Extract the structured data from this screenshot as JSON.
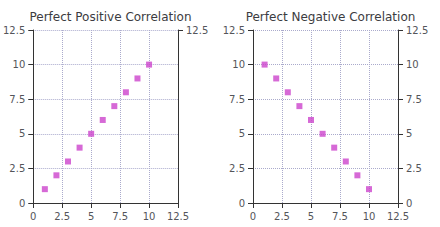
{
  "chart_data": [
    {
      "type": "scatter",
      "title": "Perfect Positive Correlation",
      "x": [
        1,
        2,
        3,
        4,
        5,
        6,
        7,
        8,
        9,
        10
      ],
      "values": [
        1,
        2,
        3,
        4,
        5,
        6,
        7,
        8,
        9,
        10
      ],
      "color": "#cc44cc",
      "marker": "square",
      "xlim": [
        0,
        12.5
      ],
      "ylim": [
        0,
        12.5
      ],
      "xticks": [
        0,
        2.5,
        5,
        7.5,
        10,
        12.5
      ],
      "yticks": [
        0,
        2.5,
        5,
        7.5,
        10,
        12.5
      ],
      "y2lim": [
        0,
        12.5
      ],
      "y2ticks": [
        12.5
      ],
      "grid": true
    },
    {
      "type": "scatter",
      "title": "Perfect Negative Correlation",
      "x": [
        1,
        2,
        3,
        4,
        5,
        6,
        7,
        8,
        9,
        10
      ],
      "values": [
        10,
        9,
        8,
        7,
        6,
        5,
        4,
        3,
        2,
        1
      ],
      "color": "#cc44cc",
      "marker": "square",
      "xlim": [
        0,
        12.5
      ],
      "ylim": [
        0,
        12.5
      ],
      "xticks": [
        0,
        2.5,
        5,
        7.5,
        10,
        12.5
      ],
      "yticks": [
        0,
        2.5,
        5,
        7.5,
        10,
        12.5
      ],
      "y2lim": [
        0,
        12.5
      ],
      "y2ticks": [
        0,
        2.5,
        5,
        7.5,
        10,
        12.5
      ],
      "grid": true
    }
  ]
}
